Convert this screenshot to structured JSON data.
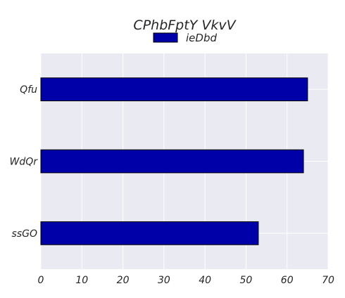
{
  "chart_data": {
    "type": "bar",
    "orientation": "horizontal",
    "title": "CPhbFptY VkvV",
    "categories": [
      "Qfu",
      "WdQr",
      "ssGO"
    ],
    "series": [
      {
        "name": "ieDbd",
        "values": [
          65,
          64,
          53
        ]
      }
    ],
    "xlabel": "",
    "ylabel": "",
    "xlim": [
      0,
      70
    ],
    "xticks": [
      0,
      10,
      20,
      30,
      40,
      50,
      60,
      70
    ],
    "grid": true,
    "legend": "top-center",
    "colors": {
      "bar": "#0000a8",
      "bar_edge": "#000000",
      "plot_background": "#eaeaf2",
      "grid": "#ffffff"
    }
  }
}
